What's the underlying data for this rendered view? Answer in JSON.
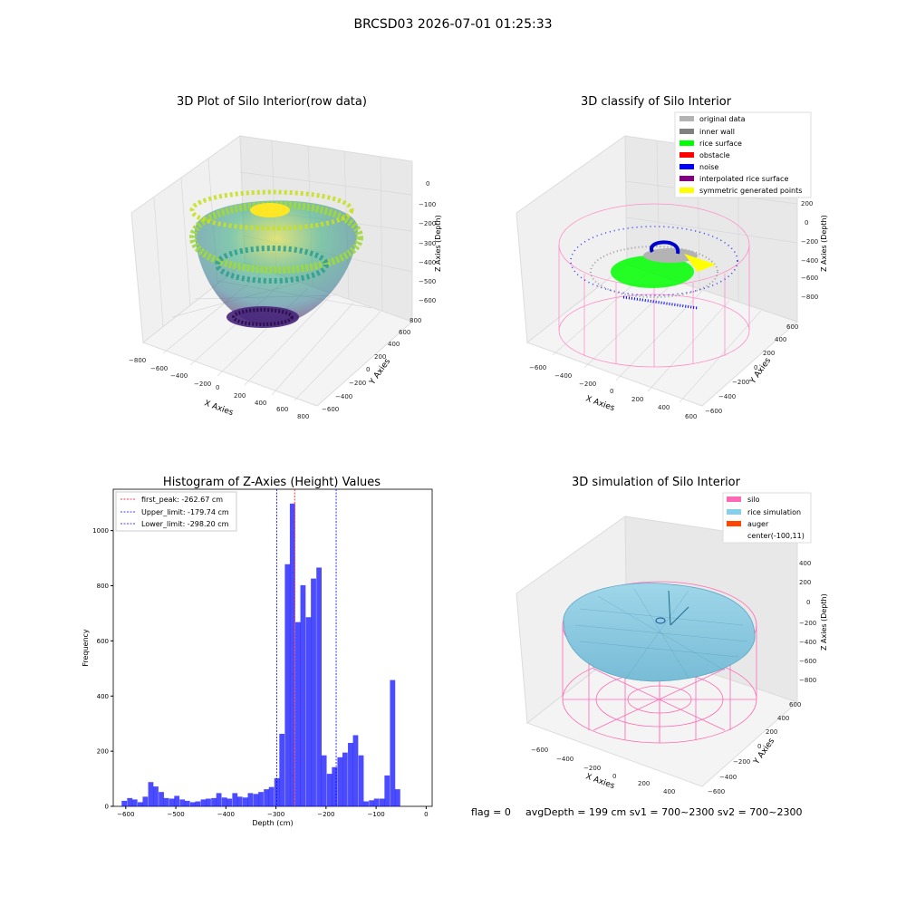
{
  "suptitle": "BRCSD03 2026-07-01 01:25:33",
  "footer": {
    "flag": "flag = 0",
    "stats": "avgDepth = 199 cm  sv1 = 700~2300  sv2 = 700~2300"
  },
  "panel_raw": {
    "title": "3D Plot of Silo Interior(row data)",
    "xlabel": "X Axies",
    "ylabel": "Y Axies",
    "zlabel": "Z Axies (Depth)",
    "xticks": [
      "−800",
      "−600",
      "−400",
      "−200",
      "0",
      "200",
      "400",
      "600",
      "800"
    ],
    "yticks": [
      "−600",
      "−400",
      "−200",
      "0",
      "200",
      "400",
      "600",
      "800"
    ],
    "zticks": [
      "0",
      "−100",
      "−200",
      "−300",
      "−400",
      "−500",
      "−600"
    ]
  },
  "panel_classify": {
    "title": "3D classify of Silo Interior",
    "xlabel": "X Axies",
    "ylabel": "Y Axies",
    "zlabel": "Z Axies (Depth)",
    "xticks": [
      "−600",
      "−400",
      "−200",
      "0",
      "200",
      "400",
      "600"
    ],
    "yticks": [
      "−600",
      "−400",
      "−200",
      "0",
      "200",
      "400",
      "600"
    ],
    "zticks": [
      "200",
      "0",
      "−200",
      "−400",
      "−600",
      "−800"
    ],
    "legend": [
      {
        "label": "original data",
        "color": "#b3b3b3"
      },
      {
        "label": "inner wall",
        "color": "#808080"
      },
      {
        "label": "rice surface",
        "color": "#00ff00"
      },
      {
        "label": "obstacle",
        "color": "#ff0000"
      },
      {
        "label": "noise",
        "color": "#0000ff"
      },
      {
        "label": "interpolated rice surface",
        "color": "#800080"
      },
      {
        "label": "symmetric generated points",
        "color": "#ffff00"
      }
    ]
  },
  "panel_sim": {
    "title": "3D simulation of Silo Interior",
    "xlabel": "X Axies",
    "ylabel": "Y Axies",
    "zlabel": "Z Axies (Depth)",
    "xticks": [
      "−600",
      "−400",
      "−200",
      "0",
      "200",
      "400"
    ],
    "yticks": [
      "−600",
      "−400",
      "−200",
      "0",
      "200",
      "400",
      "600"
    ],
    "zticks": [
      "400",
      "200",
      "0",
      "−200",
      "−400",
      "−600",
      "−800"
    ],
    "legend": [
      {
        "label": "silo",
        "color": "#ff69b4"
      },
      {
        "label": "rice simulation",
        "color": "#87ceeb"
      },
      {
        "label": "auger",
        "color": "#ff4500"
      },
      {
        "label": "center(-100,11)",
        "color": ""
      }
    ]
  },
  "chart_data": [
    {
      "type": "bar",
      "title": "Histogram of Z-Axies (Height) Values",
      "xlabel": "Depth (cm)",
      "ylabel": "Frequency",
      "xlim": [
        -625,
        12
      ],
      "ylim": [
        0,
        1150
      ],
      "xticks": [
        -600,
        -500,
        -400,
        -300,
        -200,
        -100,
        0
      ],
      "yticks": [
        0,
        200,
        400,
        600,
        800,
        1000
      ],
      "bin_width": 10.5,
      "bar_color": "#0000ff",
      "bins": [
        {
          "x": -603,
          "y": 20
        },
        {
          "x": -592,
          "y": 30
        },
        {
          "x": -582,
          "y": 25
        },
        {
          "x": -571,
          "y": 15
        },
        {
          "x": -561,
          "y": 35
        },
        {
          "x": -550,
          "y": 88
        },
        {
          "x": -540,
          "y": 72
        },
        {
          "x": -529,
          "y": 52
        },
        {
          "x": -519,
          "y": 30
        },
        {
          "x": -508,
          "y": 28
        },
        {
          "x": -498,
          "y": 38
        },
        {
          "x": -487,
          "y": 25
        },
        {
          "x": -477,
          "y": 20
        },
        {
          "x": -466,
          "y": 15
        },
        {
          "x": -456,
          "y": 18
        },
        {
          "x": -445,
          "y": 25
        },
        {
          "x": -435,
          "y": 28
        },
        {
          "x": -424,
          "y": 30
        },
        {
          "x": -414,
          "y": 48
        },
        {
          "x": -403,
          "y": 32
        },
        {
          "x": -393,
          "y": 28
        },
        {
          "x": -382,
          "y": 48
        },
        {
          "x": -372,
          "y": 35
        },
        {
          "x": -361,
          "y": 32
        },
        {
          "x": -351,
          "y": 48
        },
        {
          "x": -340,
          "y": 45
        },
        {
          "x": -330,
          "y": 52
        },
        {
          "x": -319,
          "y": 62
        },
        {
          "x": -309,
          "y": 70
        },
        {
          "x": -298,
          "y": 102
        },
        {
          "x": -288,
          "y": 263
        },
        {
          "x": -277,
          "y": 878
        },
        {
          "x": -267,
          "y": 1098
        },
        {
          "x": -256,
          "y": 668
        },
        {
          "x": -246,
          "y": 802
        },
        {
          "x": -235,
          "y": 686
        },
        {
          "x": -225,
          "y": 826
        },
        {
          "x": -214,
          "y": 866
        },
        {
          "x": -204,
          "y": 185
        },
        {
          "x": -193,
          "y": 118
        },
        {
          "x": -183,
          "y": 142
        },
        {
          "x": -172,
          "y": 178
        },
        {
          "x": -162,
          "y": 195
        },
        {
          "x": -151,
          "y": 230
        },
        {
          "x": -141,
          "y": 258
        },
        {
          "x": -130,
          "y": 185
        },
        {
          "x": -120,
          "y": 18
        },
        {
          "x": -109,
          "y": 22
        },
        {
          "x": -99,
          "y": 28
        },
        {
          "x": -88,
          "y": 28
        },
        {
          "x": -78,
          "y": 112
        },
        {
          "x": -67,
          "y": 458
        },
        {
          "x": -57,
          "y": 62
        }
      ],
      "vlines": [
        {
          "label": "first_peak: -262.67 cm",
          "x": -262.67,
          "color": "#ff0000"
        },
        {
          "label": "Upper_limit: -179.74 cm",
          "x": -179.74,
          "color": "#0000ff"
        },
        {
          "label": "Lower_limit: -298.20 cm",
          "x": -298.2,
          "color": "#0000ff"
        }
      ]
    }
  ]
}
